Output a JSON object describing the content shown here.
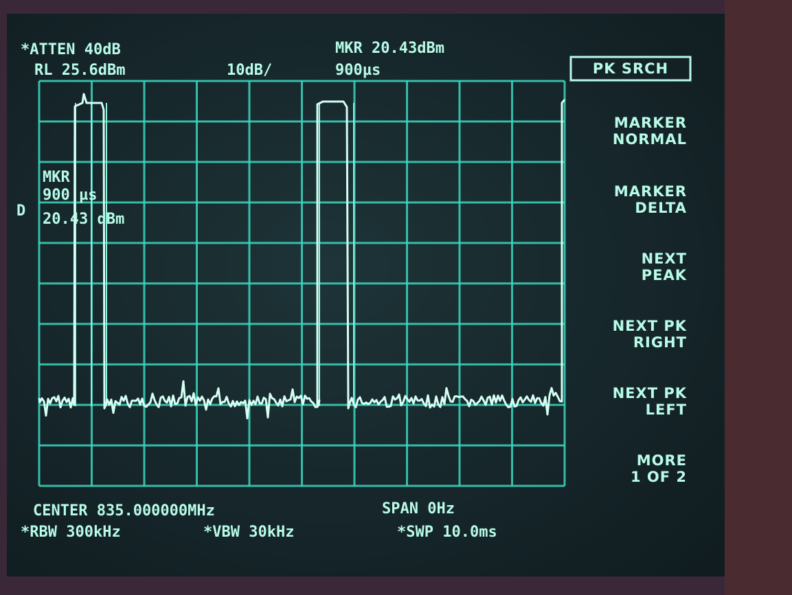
{
  "header": {
    "atten": "*ATTEN 40dB",
    "ref_level": "RL 25.6dBm",
    "scale": "10dB/",
    "marker": "MKR 20.43dBm",
    "marker_time": "900µs"
  },
  "marker_readout": {
    "lines": [
      "MKR",
      "900  µs",
      "20.43  dBm"
    ],
    "detector": "D"
  },
  "softkeys": {
    "title": "PK SRCH",
    "keys": [
      [
        "MARKER",
        "NORMAL"
      ],
      [
        "MARKER",
        "DELTA"
      ],
      [
        "NEXT",
        "PEAK"
      ],
      [
        "NEXT PK",
        "RIGHT"
      ],
      [
        "NEXT PK",
        "LEFT"
      ],
      [
        "MORE",
        "1 OF 2"
      ]
    ]
  },
  "footer": {
    "center": "CENTER 835.000000MHz",
    "span": "SPAN 0Hz",
    "rbw": "*RBW 300kHz",
    "vbw": "*VBW 30kHz",
    "sweep": "*SWP 10.0ms"
  }
}
